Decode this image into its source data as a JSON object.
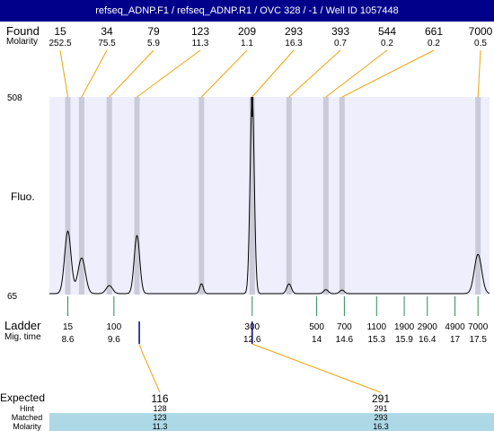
{
  "title": "refseq_ADNP.F1 / refseq_ADNP.R1 / OVC 328 / -1 / Well ID 1057448",
  "labels": {
    "found": "Found",
    "molarity": "Molarity",
    "fluo": "Fluo.",
    "ladder": "Ladder",
    "mig_time": "Mig. time",
    "expected": "Expected",
    "hint": "Hint",
    "matched": "Matched",
    "molarity_row": "Molarity"
  },
  "chart_data": {
    "type": "line",
    "ylim": [
      65,
      508
    ],
    "y_ticks": [
      "508",
      "65"
    ],
    "xlim": [
      8.2,
      17.75
    ],
    "found": [
      {
        "size": "15",
        "molarity": "252.5",
        "time": 8.6
      },
      {
        "size": "34",
        "molarity": "75.5",
        "time": 8.9
      },
      {
        "size": "79",
        "molarity": "5.9",
        "time": 9.5
      },
      {
        "size": "123",
        "molarity": "11.3",
        "time": 10.1
      },
      {
        "size": "209",
        "molarity": "1.1",
        "time": 11.5
      },
      {
        "size": "293",
        "molarity": "16.3",
        "time": 12.6
      },
      {
        "size": "393",
        "molarity": "0.7",
        "time": 13.4
      },
      {
        "size": "544",
        "molarity": "0.2",
        "time": 14.2
      },
      {
        "size": "661",
        "molarity": "0.2",
        "time": 14.55
      },
      {
        "size": "7000",
        "molarity": "0.5",
        "time": 17.5
      }
    ],
    "ladder": [
      {
        "size": "15",
        "time": "8.6",
        "t": 8.6
      },
      {
        "size": "100",
        "time": "9.6",
        "t": 9.6
      },
      {
        "size": "300",
        "time": "12.6",
        "t": 12.6
      },
      {
        "size": "500",
        "time": "14",
        "t": 14.0
      },
      {
        "size": "700",
        "time": "14.6",
        "t": 14.6
      },
      {
        "size": "1100",
        "time": "15.3",
        "t": 15.3
      },
      {
        "size": "1900",
        "time": "15.9",
        "t": 15.9
      },
      {
        "size": "2900",
        "time": "16.4",
        "t": 16.4
      },
      {
        "size": "4900",
        "time": "17",
        "t": 17.0
      },
      {
        "size": "7000",
        "time": "17.5",
        "t": 17.5
      }
    ],
    "trace_peaks": [
      {
        "t": 8.6,
        "height": 140,
        "width": 0.07
      },
      {
        "t": 8.9,
        "height": 80,
        "width": 0.08
      },
      {
        "t": 9.5,
        "height": 18,
        "width": 0.07
      },
      {
        "t": 10.1,
        "height": 130,
        "width": 0.06
      },
      {
        "t": 11.5,
        "height": 22,
        "width": 0.04
      },
      {
        "t": 12.6,
        "height": 443,
        "width": 0.045
      },
      {
        "t": 13.4,
        "height": 22,
        "width": 0.05
      },
      {
        "t": 14.2,
        "height": 9,
        "width": 0.05
      },
      {
        "t": 14.55,
        "height": 8,
        "width": 0.05
      },
      {
        "t": 17.5,
        "height": 88,
        "width": 0.08
      }
    ],
    "expected": [
      {
        "expected": "116",
        "hint": "128",
        "matched": "123",
        "molarity": "11.3",
        "marker_time": 10.15
      },
      {
        "expected": "291",
        "hint": "291",
        "matched": "293",
        "molarity": "16.3",
        "marker_time": 12.6
      }
    ]
  }
}
